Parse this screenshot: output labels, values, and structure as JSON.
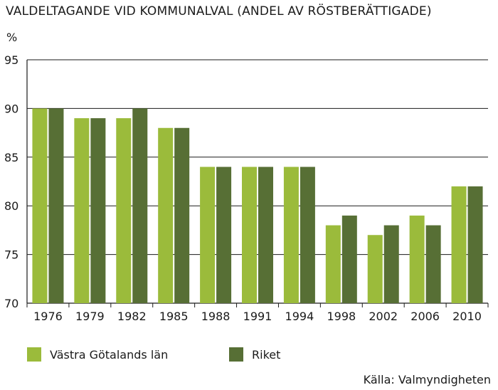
{
  "chart_data": {
    "type": "bar",
    "title": "VALDELTAGANDE VID KOMMUNALVAL (ANDEL AV RÖSTBERÄTTIGADE)",
    "ylabel": "%",
    "xlabel": "",
    "ylim": [
      70,
      95
    ],
    "yticks": [
      "70",
      "75",
      "80",
      "85",
      "90",
      "95"
    ],
    "grid": true,
    "categories": [
      "1976",
      "1979",
      "1982",
      "1985",
      "1988",
      "1991",
      "1994",
      "1998",
      "2002",
      "2006",
      "2010"
    ],
    "series": [
      {
        "name": "Västra Götalands län",
        "color": "#9bbb3b",
        "values": [
          90,
          89,
          89,
          88,
          84,
          84,
          84,
          78,
          77,
          79,
          82
        ]
      },
      {
        "name": "Riket",
        "color": "#576f35",
        "values": [
          90,
          89,
          90,
          88,
          84,
          84,
          84,
          79,
          78,
          78,
          82
        ]
      }
    ],
    "legend_position": "bottom-left",
    "source": "Källa: Valmyndigheten"
  }
}
